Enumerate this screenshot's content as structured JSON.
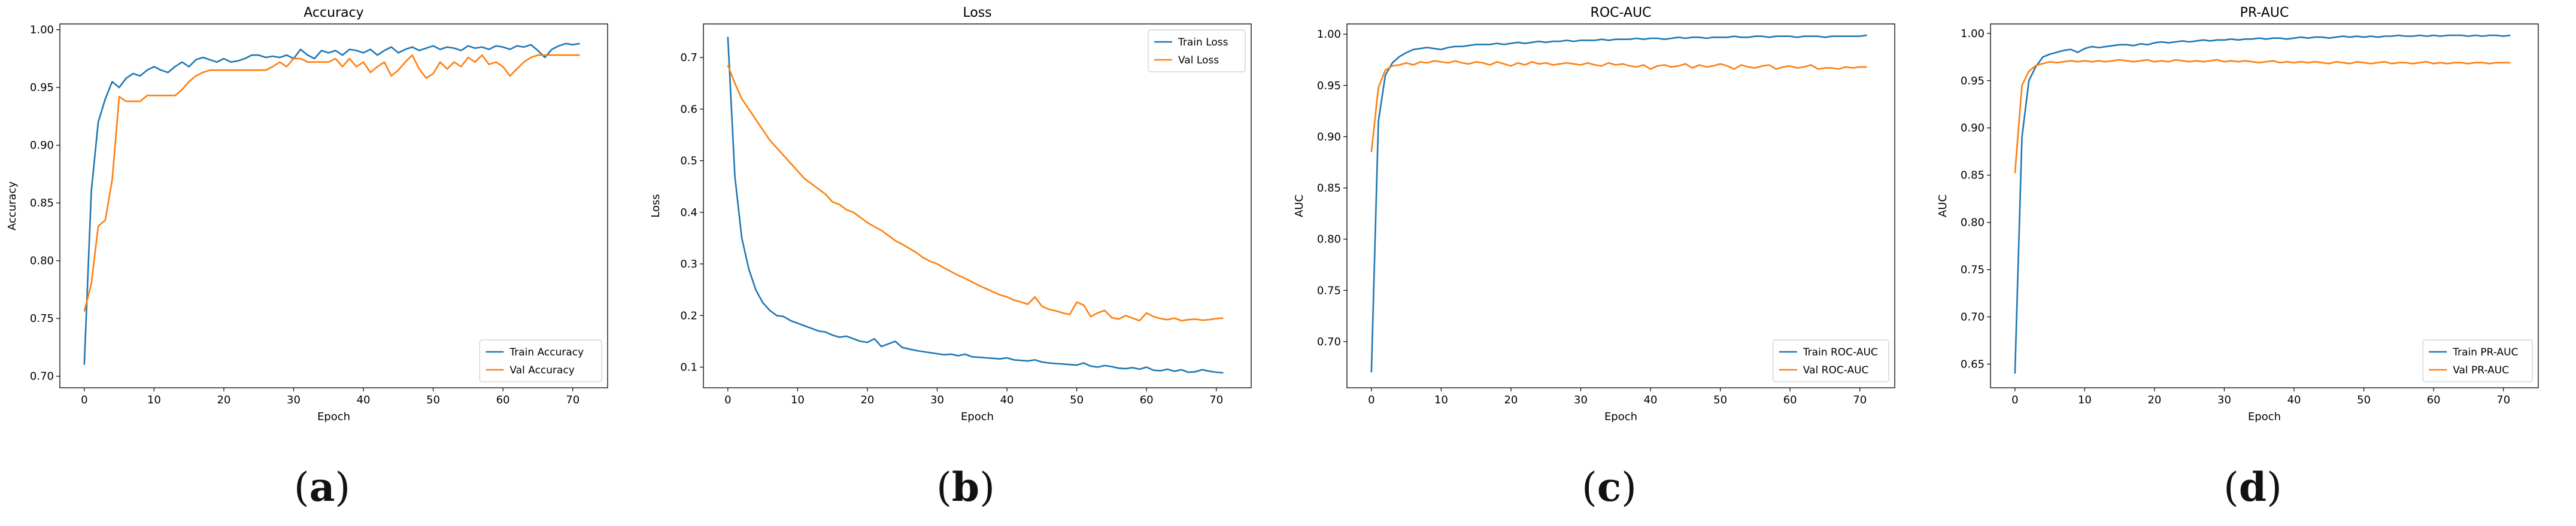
{
  "colors": {
    "train": "#1f77b4",
    "val": "#ff7f0e"
  },
  "chart_data": [
    {
      "type": "line",
      "title": "Accuracy",
      "xlabel": "Epoch",
      "ylabel": "Accuracy",
      "caption": "a",
      "xlim": [
        -3.5,
        75
      ],
      "ylim": [
        0.69,
        1.005
      ],
      "xticks": [
        "0",
        "10",
        "20",
        "30",
        "40",
        "50",
        "60",
        "70"
      ],
      "xtick_values": [
        0,
        10,
        20,
        30,
        40,
        50,
        60,
        70
      ],
      "yticks": [
        "0.70",
        "0.75",
        "0.80",
        "0.85",
        "0.90",
        "0.95",
        "1.00"
      ],
      "ytick_values": [
        0.7,
        0.75,
        0.8,
        0.85,
        0.9,
        0.95,
        1.0
      ],
      "legend_position": "lower-right",
      "series": [
        {
          "name": "Train Accuracy",
          "values": [
            0.71,
            0.86,
            0.92,
            0.94,
            0.955,
            0.95,
            0.958,
            0.962,
            0.96,
            0.965,
            0.968,
            0.965,
            0.963,
            0.968,
            0.972,
            0.968,
            0.974,
            0.976,
            0.974,
            0.972,
            0.975,
            0.972,
            0.973,
            0.975,
            0.978,
            0.978,
            0.976,
            0.977,
            0.976,
            0.978,
            0.975,
            0.983,
            0.978,
            0.975,
            0.982,
            0.98,
            0.982,
            0.978,
            0.983,
            0.982,
            0.98,
            0.983,
            0.978,
            0.982,
            0.985,
            0.98,
            0.983,
            0.985,
            0.982,
            0.984,
            0.986,
            0.983,
            0.985,
            0.984,
            0.982,
            0.986,
            0.984,
            0.985,
            0.983,
            0.986,
            0.985,
            0.983,
            0.986,
            0.985,
            0.987,
            0.982,
            0.976,
            0.983,
            0.986,
            0.988,
            0.987,
            0.988
          ]
        },
        {
          "name": "Val Accuracy",
          "values": [
            0.756,
            0.78,
            0.83,
            0.835,
            0.87,
            0.942,
            0.938,
            0.938,
            0.938,
            0.943,
            0.943,
            0.943,
            0.943,
            0.943,
            0.948,
            0.955,
            0.96,
            0.963,
            0.965,
            0.965,
            0.965,
            0.965,
            0.965,
            0.965,
            0.965,
            0.965,
            0.965,
            0.968,
            0.972,
            0.968,
            0.975,
            0.975,
            0.972,
            0.972,
            0.972,
            0.972,
            0.975,
            0.968,
            0.975,
            0.968,
            0.972,
            0.963,
            0.968,
            0.972,
            0.96,
            0.965,
            0.972,
            0.978,
            0.966,
            0.958,
            0.962,
            0.972,
            0.966,
            0.972,
            0.968,
            0.976,
            0.972,
            0.978,
            0.97,
            0.972,
            0.968,
            0.96,
            0.966,
            0.972,
            0.976,
            0.978,
            0.978,
            0.978,
            0.978,
            0.978,
            0.978,
            0.978
          ]
        }
      ]
    },
    {
      "type": "line",
      "title": "Loss",
      "xlabel": "Epoch",
      "ylabel": "Loss",
      "caption": "b",
      "xlim": [
        -3.5,
        75
      ],
      "ylim": [
        0.06,
        0.765
      ],
      "xticks": [
        "0",
        "10",
        "20",
        "30",
        "40",
        "50",
        "60",
        "70"
      ],
      "xtick_values": [
        0,
        10,
        20,
        30,
        40,
        50,
        60,
        70
      ],
      "yticks": [
        "0.1",
        "0.2",
        "0.3",
        "0.4",
        "0.5",
        "0.6",
        "0.7"
      ],
      "ytick_values": [
        0.1,
        0.2,
        0.3,
        0.4,
        0.5,
        0.6,
        0.7
      ],
      "legend_position": "top-right",
      "series": [
        {
          "name": "Train Loss",
          "values": [
            0.74,
            0.47,
            0.35,
            0.29,
            0.25,
            0.225,
            0.21,
            0.2,
            0.198,
            0.19,
            0.185,
            0.18,
            0.175,
            0.17,
            0.168,
            0.162,
            0.158,
            0.16,
            0.155,
            0.15,
            0.148,
            0.155,
            0.14,
            0.145,
            0.15,
            0.138,
            0.135,
            0.132,
            0.13,
            0.128,
            0.126,
            0.124,
            0.125,
            0.122,
            0.125,
            0.12,
            0.119,
            0.118,
            0.117,
            0.116,
            0.118,
            0.114,
            0.113,
            0.112,
            0.114,
            0.11,
            0.108,
            0.107,
            0.106,
            0.105,
            0.104,
            0.108,
            0.102,
            0.1,
            0.103,
            0.101,
            0.098,
            0.097,
            0.099,
            0.096,
            0.1,
            0.094,
            0.093,
            0.096,
            0.092,
            0.095,
            0.09,
            0.091,
            0.095,
            0.092,
            0.09,
            0.089
          ]
        },
        {
          "name": "Val Loss",
          "values": [
            0.685,
            0.65,
            0.62,
            0.6,
            0.58,
            0.56,
            0.54,
            0.525,
            0.51,
            0.495,
            0.48,
            0.465,
            0.455,
            0.445,
            0.435,
            0.42,
            0.415,
            0.405,
            0.4,
            0.39,
            0.38,
            0.372,
            0.365,
            0.355,
            0.345,
            0.338,
            0.33,
            0.322,
            0.312,
            0.305,
            0.3,
            0.292,
            0.285,
            0.278,
            0.272,
            0.265,
            0.258,
            0.252,
            0.246,
            0.24,
            0.236,
            0.23,
            0.226,
            0.222,
            0.236,
            0.218,
            0.212,
            0.209,
            0.205,
            0.202,
            0.226,
            0.22,
            0.198,
            0.205,
            0.21,
            0.196,
            0.193,
            0.2,
            0.195,
            0.19,
            0.205,
            0.198,
            0.194,
            0.192,
            0.195,
            0.19,
            0.192,
            0.193,
            0.191,
            0.192,
            0.194,
            0.195
          ]
        }
      ]
    },
    {
      "type": "line",
      "title": "ROC-AUC",
      "xlabel": "Epoch",
      "ylabel": "AUC",
      "caption": "c",
      "xlim": [
        -3.5,
        75
      ],
      "ylim": [
        0.655,
        1.01
      ],
      "xticks": [
        "0",
        "10",
        "20",
        "30",
        "40",
        "50",
        "60",
        "70"
      ],
      "xtick_values": [
        0,
        10,
        20,
        30,
        40,
        50,
        60,
        70
      ],
      "yticks": [
        "0.70",
        "0.75",
        "0.80",
        "0.85",
        "0.90",
        "0.95",
        "1.00"
      ],
      "ytick_values": [
        0.7,
        0.75,
        0.8,
        0.85,
        0.9,
        0.95,
        1.0
      ],
      "legend_position": "lower-right",
      "series": [
        {
          "name": "Train ROC-AUC",
          "values": [
            0.67,
            0.915,
            0.96,
            0.972,
            0.978,
            0.982,
            0.985,
            0.986,
            0.987,
            0.986,
            0.985,
            0.987,
            0.988,
            0.988,
            0.989,
            0.99,
            0.99,
            0.99,
            0.991,
            0.99,
            0.991,
            0.992,
            0.991,
            0.992,
            0.993,
            0.992,
            0.993,
            0.993,
            0.994,
            0.993,
            0.994,
            0.994,
            0.994,
            0.995,
            0.994,
            0.995,
            0.995,
            0.995,
            0.996,
            0.995,
            0.996,
            0.996,
            0.995,
            0.996,
            0.997,
            0.996,
            0.997,
            0.997,
            0.996,
            0.997,
            0.997,
            0.997,
            0.998,
            0.997,
            0.997,
            0.998,
            0.998,
            0.997,
            0.998,
            0.998,
            0.998,
            0.997,
            0.998,
            0.998,
            0.998,
            0.997,
            0.998,
            0.998,
            0.998,
            0.998,
            0.998,
            0.999
          ]
        },
        {
          "name": "Val ROC-AUC",
          "values": [
            0.885,
            0.948,
            0.965,
            0.969,
            0.97,
            0.972,
            0.97,
            0.973,
            0.972,
            0.974,
            0.973,
            0.972,
            0.974,
            0.972,
            0.971,
            0.973,
            0.972,
            0.97,
            0.973,
            0.971,
            0.969,
            0.972,
            0.97,
            0.973,
            0.971,
            0.972,
            0.97,
            0.971,
            0.972,
            0.971,
            0.97,
            0.972,
            0.97,
            0.969,
            0.972,
            0.97,
            0.971,
            0.969,
            0.968,
            0.97,
            0.966,
            0.969,
            0.97,
            0.968,
            0.969,
            0.971,
            0.967,
            0.97,
            0.968,
            0.969,
            0.971,
            0.969,
            0.966,
            0.97,
            0.968,
            0.967,
            0.969,
            0.97,
            0.966,
            0.968,
            0.969,
            0.967,
            0.968,
            0.97,
            0.966,
            0.967,
            0.967,
            0.966,
            0.968,
            0.967,
            0.968,
            0.968
          ]
        }
      ]
    },
    {
      "type": "line",
      "title": "PR-AUC",
      "xlabel": "Epoch",
      "ylabel": "AUC",
      "caption": "d",
      "xlim": [
        -3.5,
        75
      ],
      "ylim": [
        0.625,
        1.01
      ],
      "xticks": [
        "0",
        "10",
        "20",
        "30",
        "40",
        "50",
        "60",
        "70"
      ],
      "xtick_values": [
        0,
        10,
        20,
        30,
        40,
        50,
        60,
        70
      ],
      "yticks": [
        "0.65",
        "0.70",
        "0.75",
        "0.80",
        "0.85",
        "0.90",
        "0.95",
        "1.00"
      ],
      "ytick_values": [
        0.65,
        0.7,
        0.75,
        0.8,
        0.85,
        0.9,
        0.95,
        1.0
      ],
      "legend_position": "lower-right",
      "series": [
        {
          "name": "Train PR-AUC",
          "values": [
            0.64,
            0.89,
            0.95,
            0.965,
            0.975,
            0.978,
            0.98,
            0.982,
            0.983,
            0.98,
            0.984,
            0.986,
            0.985,
            0.986,
            0.987,
            0.988,
            0.988,
            0.987,
            0.989,
            0.988,
            0.99,
            0.991,
            0.99,
            0.991,
            0.992,
            0.991,
            0.992,
            0.993,
            0.992,
            0.993,
            0.993,
            0.994,
            0.993,
            0.994,
            0.994,
            0.995,
            0.994,
            0.995,
            0.995,
            0.994,
            0.995,
            0.996,
            0.995,
            0.996,
            0.996,
            0.995,
            0.996,
            0.997,
            0.996,
            0.997,
            0.996,
            0.997,
            0.996,
            0.997,
            0.997,
            0.998,
            0.997,
            0.997,
            0.998,
            0.997,
            0.998,
            0.997,
            0.998,
            0.998,
            0.998,
            0.997,
            0.998,
            0.997,
            0.998,
            0.998,
            0.997,
            0.998
          ]
        },
        {
          "name": "Val PR-AUC",
          "values": [
            0.852,
            0.945,
            0.96,
            0.966,
            0.968,
            0.97,
            0.969,
            0.97,
            0.971,
            0.97,
            0.971,
            0.97,
            0.971,
            0.97,
            0.971,
            0.972,
            0.971,
            0.97,
            0.971,
            0.972,
            0.97,
            0.971,
            0.97,
            0.972,
            0.971,
            0.97,
            0.971,
            0.97,
            0.971,
            0.972,
            0.97,
            0.971,
            0.97,
            0.971,
            0.97,
            0.969,
            0.97,
            0.971,
            0.969,
            0.97,
            0.969,
            0.97,
            0.969,
            0.97,
            0.969,
            0.968,
            0.97,
            0.969,
            0.968,
            0.97,
            0.969,
            0.968,
            0.969,
            0.97,
            0.968,
            0.969,
            0.969,
            0.968,
            0.969,
            0.97,
            0.968,
            0.969,
            0.968,
            0.969,
            0.969,
            0.968,
            0.969,
            0.969,
            0.968,
            0.969,
            0.969,
            0.969
          ]
        }
      ]
    }
  ]
}
